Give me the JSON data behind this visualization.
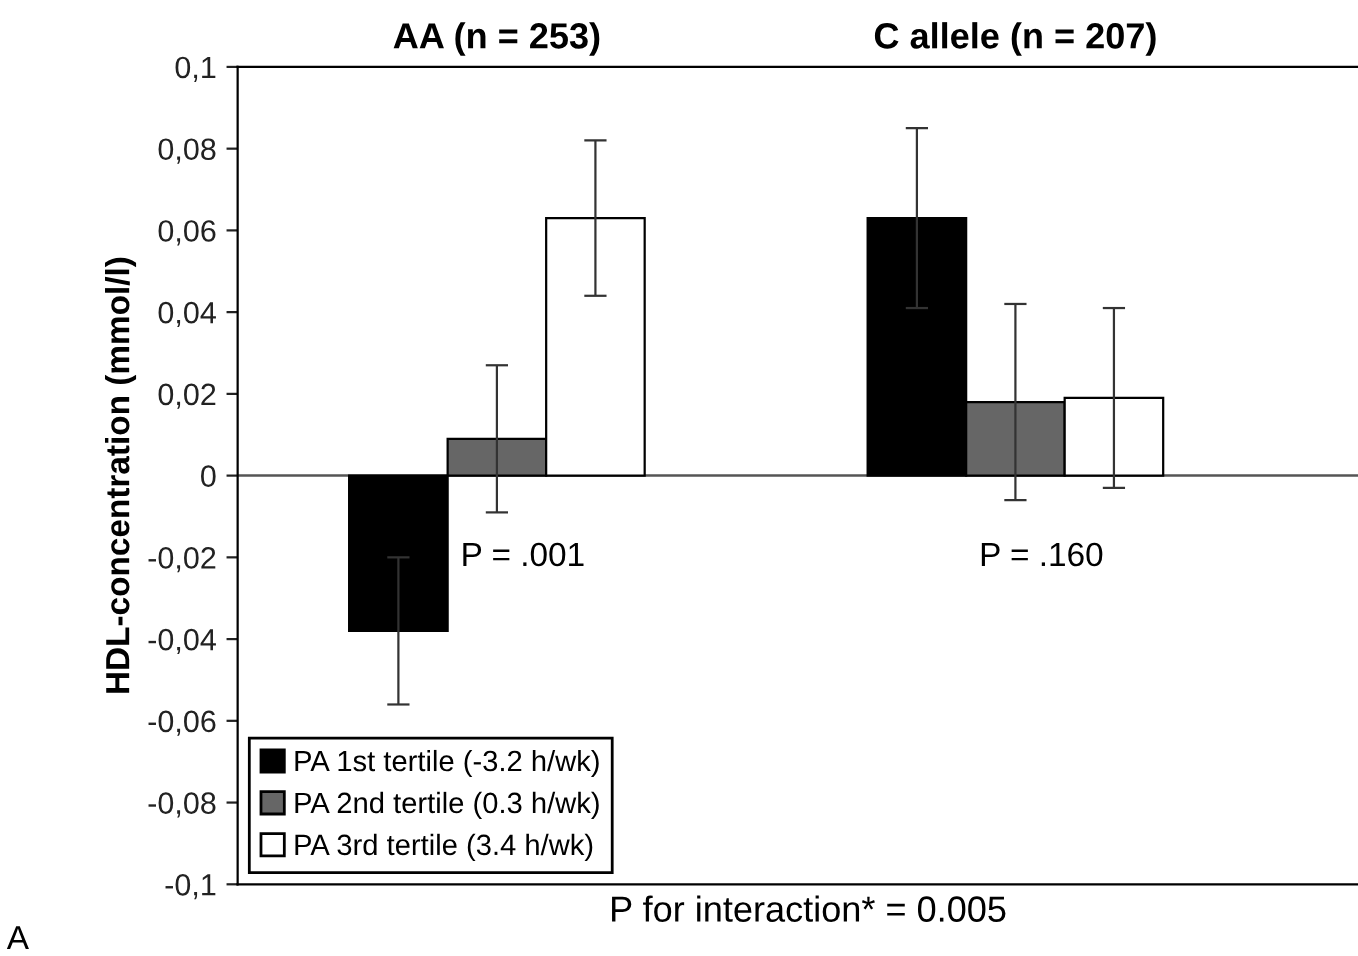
{
  "chart_data": {
    "type": "bar",
    "categories": [
      "AA (n = 253)",
      "C allele (n = 207)"
    ],
    "xlabel": "P for interaction* = 0.005",
    "ylabel": "HDL-concentration (mmol/l)",
    "series": [
      {
        "name": "PA 1st tertile (-3.2 h/wk)",
        "color": "#000000",
        "values": [
          -0.038,
          0.063
        ],
        "errors": [
          0.018,
          0.022
        ]
      },
      {
        "name": "PA 2nd tertile (0.3 h/wk)",
        "color": "#666666",
        "values": [
          0.009,
          0.018
        ],
        "errors": [
          0.018,
          0.024
        ]
      },
      {
        "name": "PA 3rd tertile (3.4 h/wk)",
        "color": "#ffffff",
        "values": [
          0.063,
          0.019
        ],
        "errors": [
          0.019,
          0.022
        ]
      }
    ],
    "ylim": [
      -0.1,
      0.1
    ],
    "yticks": [
      {
        "value": -0.1,
        "label": "-0,1"
      },
      {
        "value": -0.08,
        "label": "-0,08"
      },
      {
        "value": -0.06,
        "label": "-0,06"
      },
      {
        "value": -0.04,
        "label": "-0,04"
      },
      {
        "value": -0.02,
        "label": "-0,02"
      },
      0,
      {
        "value": 0.02,
        "label": "0,02"
      },
      {
        "value": 0.04,
        "label": "0,04"
      },
      {
        "value": 0.06,
        "label": "0,06"
      },
      {
        "value": 0.08,
        "label": "0,08"
      },
      {
        "value": 0.1,
        "label": "0,1"
      }
    ],
    "ref_lines": [
      {
        "axis": "y",
        "value": 0,
        "color": "#555555"
      }
    ],
    "annotations": [
      "P = .001",
      "P = .160",
      "A"
    ],
    "legend": "bottom left",
    "grid": false
  }
}
